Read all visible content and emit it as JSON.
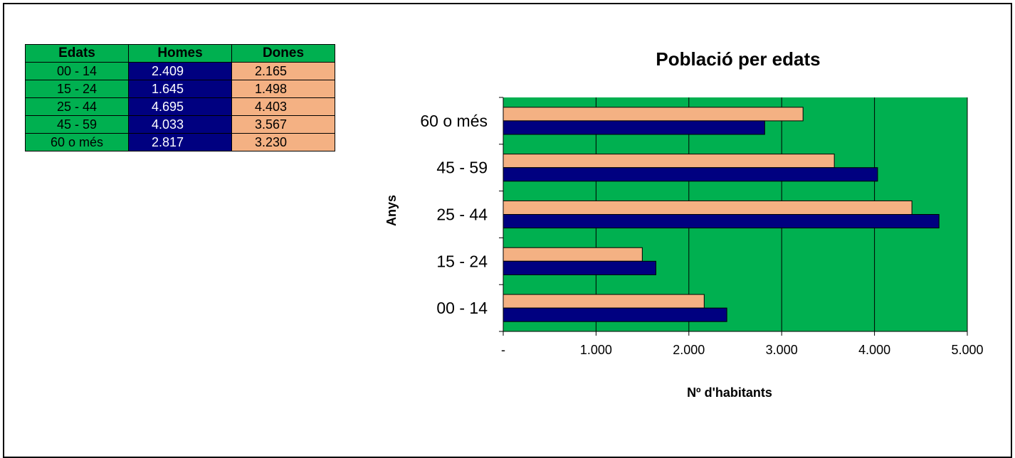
{
  "table": {
    "headers": [
      "Edats",
      "Homes",
      "Dones"
    ],
    "rows": [
      {
        "age": "00 - 14",
        "men": "2.409",
        "women": "2.165"
      },
      {
        "age": "15 - 24",
        "men": "1.645",
        "women": "1.498"
      },
      {
        "age": "25 - 44",
        "men": "4.695",
        "women": "4.403"
      },
      {
        "age": "45 - 59",
        "men": "4.033",
        "women": "3.567"
      },
      {
        "age": "60 o més",
        "men": "2.817",
        "women": "3.230"
      }
    ]
  },
  "colors": {
    "plot_background": "#00b050",
    "men": "#000080",
    "women": "#f4b183"
  },
  "chart_data": {
    "type": "bar",
    "orientation": "horizontal",
    "title": "Població per edats",
    "xlabel": "Nº d'habitants",
    "ylabel": "Anys",
    "categories": [
      "00 - 14",
      "15 - 24",
      "25 - 44",
      "45 - 59",
      "60 o més"
    ],
    "series": [
      {
        "name": "Dones",
        "values": [
          2165,
          1498,
          4403,
          3567,
          3230
        ],
        "color": "#f4b183"
      },
      {
        "name": "Homes",
        "values": [
          2409,
          1645,
          4695,
          4033,
          2817
        ],
        "color": "#000080"
      }
    ],
    "xlim": [
      0,
      5000
    ],
    "x_ticks": [
      0,
      1000,
      2000,
      3000,
      4000,
      5000
    ],
    "x_tick_labels": [
      "-",
      "1.000",
      "2.000",
      "3.000",
      "4.000",
      "5.000"
    ],
    "grid": true,
    "legend": "none"
  }
}
